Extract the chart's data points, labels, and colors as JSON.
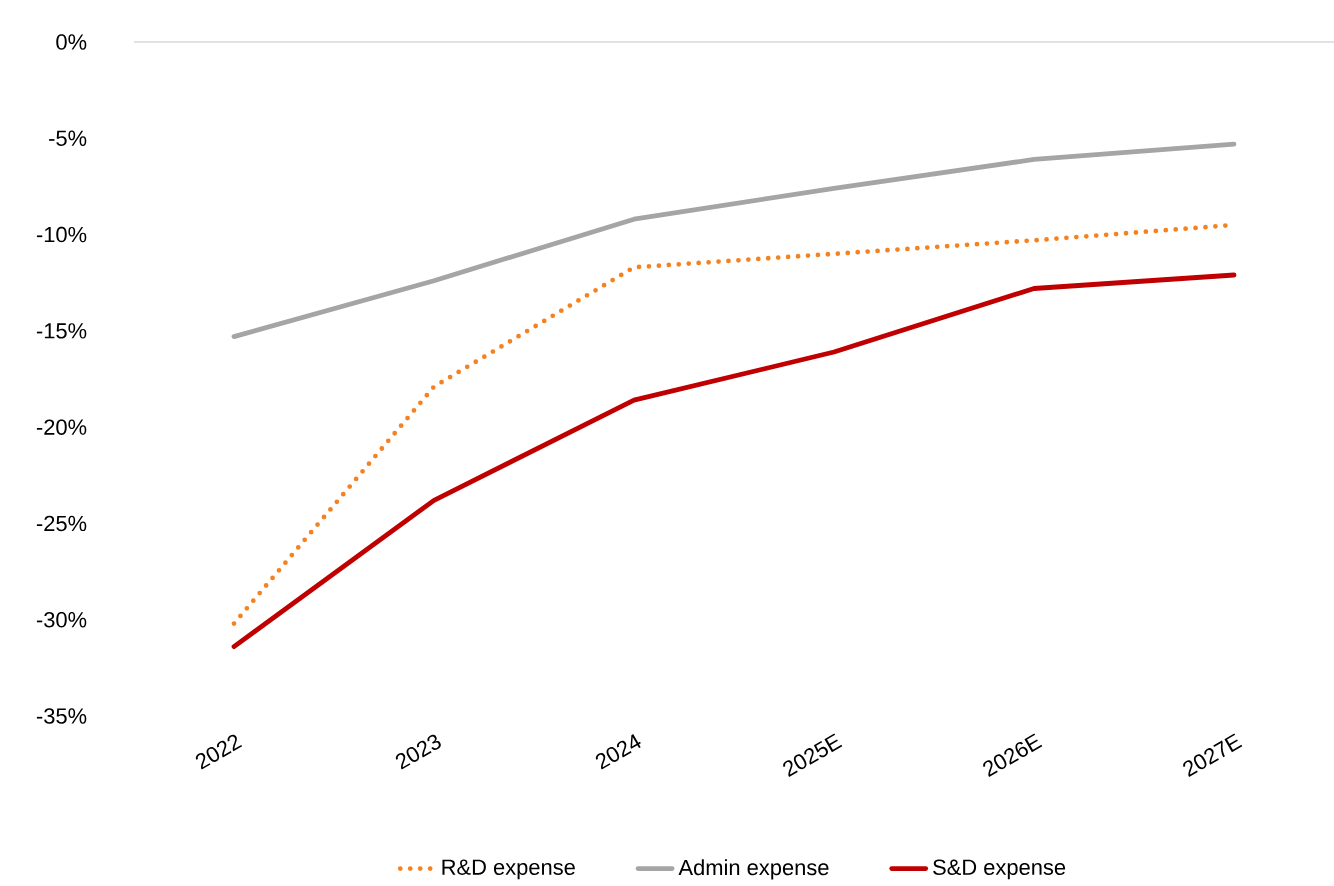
{
  "chart_data": {
    "type": "line",
    "categories": [
      "2022",
      "2023",
      "2024",
      "2025E",
      "2026E",
      "2027E"
    ],
    "ylim": [
      -35,
      0
    ],
    "yticks": [
      {
        "value": 0,
        "label": "0%"
      },
      {
        "value": -5,
        "label": "-5%"
      },
      {
        "value": -10,
        "label": "-10%"
      },
      {
        "value": -15,
        "label": "-15%"
      },
      {
        "value": -20,
        "label": "-20%"
      },
      {
        "value": -25,
        "label": "-25%"
      },
      {
        "value": -30,
        "label": "-30%"
      },
      {
        "value": -35,
        "label": "-35%"
      }
    ],
    "legend": "bottom",
    "marker": "none",
    "series": [
      {
        "name": "R&D expense",
        "color": "#f58220",
        "line_style": "dotted",
        "values": [
          -30.2,
          -17.9,
          -11.7,
          -11.0,
          -10.3,
          -9.5
        ]
      },
      {
        "name": "Admin expense",
        "color": "#a5a5a5",
        "line_style": "solid",
        "values": [
          -15.3,
          -12.4,
          -9.2,
          -7.6,
          -6.1,
          -5.3
        ]
      },
      {
        "name": "S&D expense",
        "color": "#c00000",
        "line_style": "solid",
        "values": [
          -31.4,
          -23.8,
          -18.6,
          -16.1,
          -12.8,
          -12.1
        ]
      }
    ]
  }
}
